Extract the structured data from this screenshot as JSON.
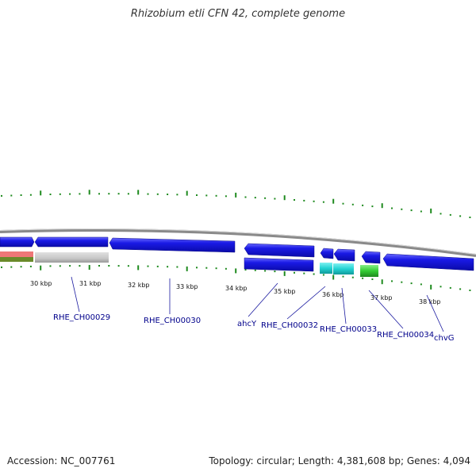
{
  "title": "Rhizobium etli CFN 42, complete genome",
  "footer": {
    "accession": "Accession: NC_007761",
    "topology": "Topology: circular; Length: 4,381,608 bp; Genes: 4,094"
  },
  "colors": {
    "backbone": "#8a8a8a",
    "tick": "#1e8a1e",
    "gene_blue": "#1010dd",
    "gene_cyan": "#22d3d3",
    "gene_green": "#33cc33",
    "gene_gray": "#c6c6c6",
    "rna_red": "#ee7777",
    "rna_olive": "#6a8a2a",
    "label": "#00008b"
  },
  "scale_labels": [
    "30 kbp",
    "31 kbp",
    "32 kbp",
    "33 kbp",
    "34 kbp",
    "35 kbp",
    "36 kbp",
    "37 kbp",
    "38 kbp"
  ],
  "gene_labels": [
    "RHE_CH00029",
    "RHE_CH00030",
    "ahcY",
    "RHE_CH00032",
    "RHE_CH00033",
    "RHE_CH00034",
    "chvG"
  ]
}
